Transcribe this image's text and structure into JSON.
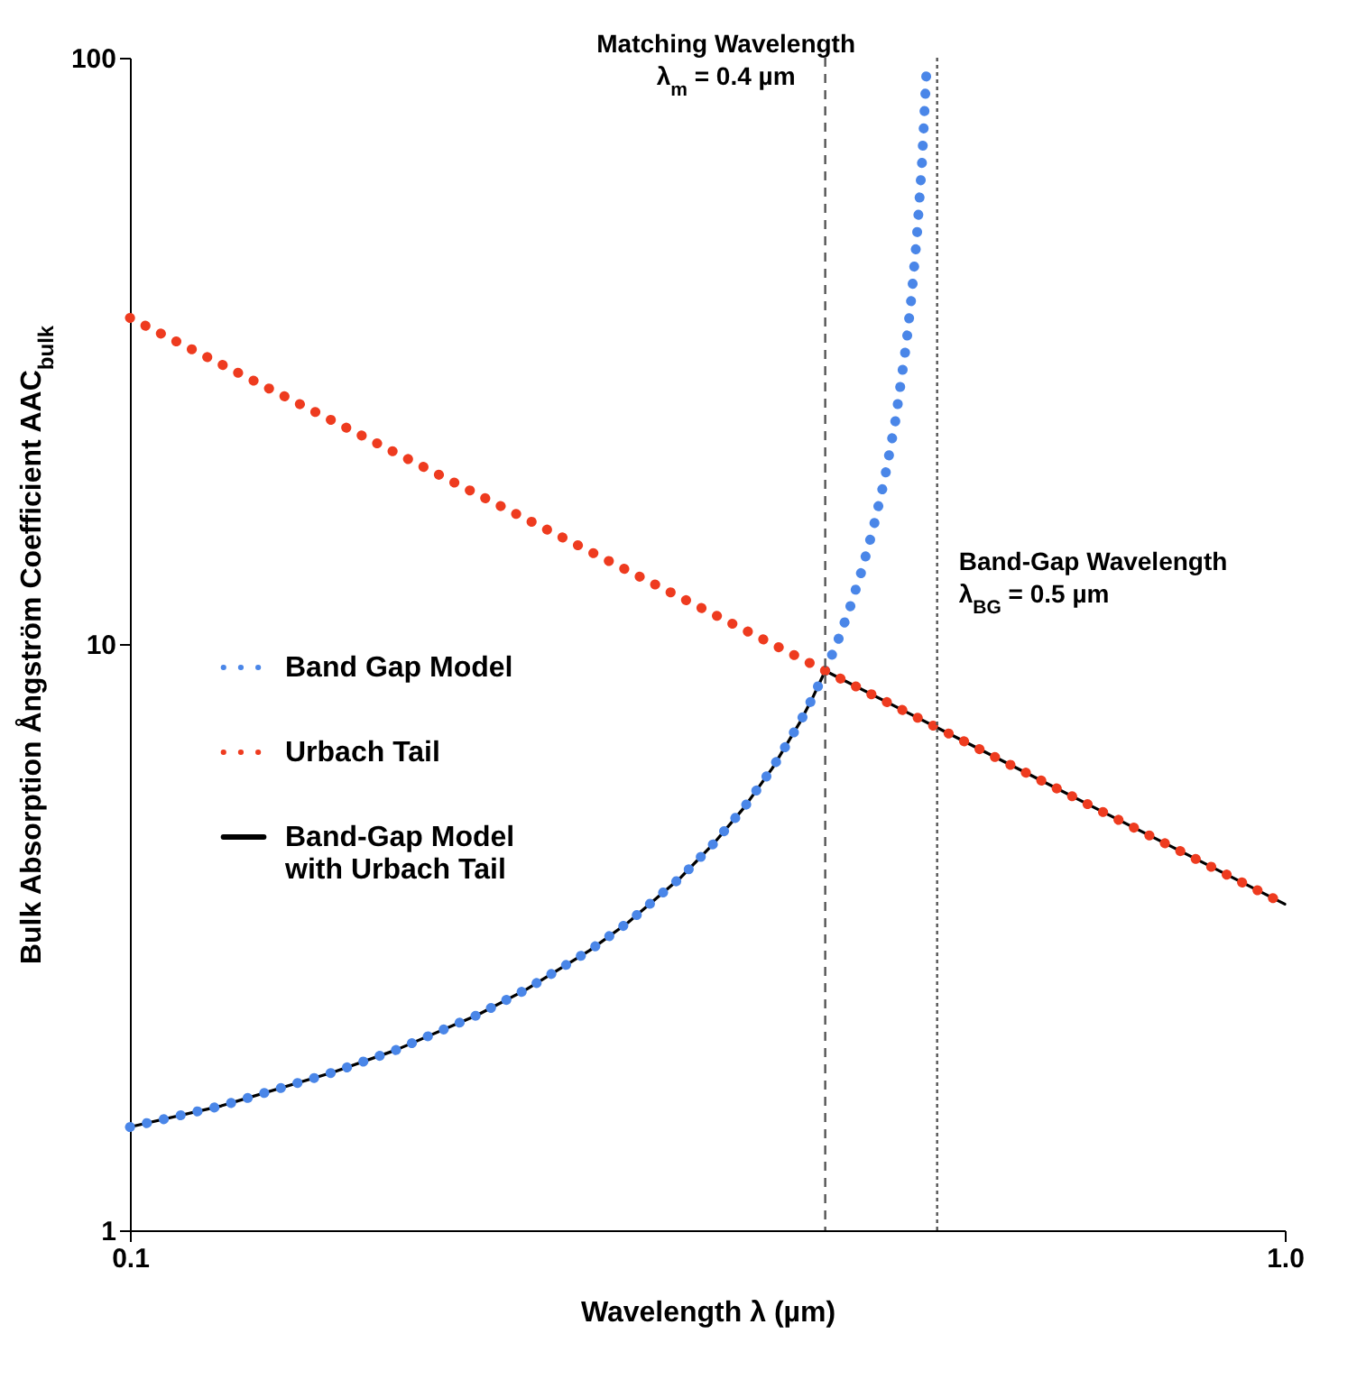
{
  "chart_data": {
    "type": "line",
    "xlabel": "Wavelength λ (µm)",
    "ylabel": "Bulk Absorption Ångström Coefficient AAC$_{bulk}$",
    "log": "xy",
    "xlim": [
      0.1,
      1
    ],
    "ylim": [
      1,
      100
    ],
    "xticks": [
      0.1,
      {
        "value": 1,
        "label": "1.0"
      }
    ],
    "yticks": [
      1,
      10,
      100
    ],
    "grid": false,
    "legend": "left",
    "series": [
      {
        "name": "Band Gap Model",
        "color": "#4a86e8",
        "line_style": "dotted",
        "x": [
          0.1,
          0.12,
          0.15,
          0.17,
          0.2,
          0.22,
          0.25,
          0.27,
          0.3,
          0.32,
          0.34,
          0.36,
          0.38,
          0.39,
          0.4,
          0.41,
          0.42,
          0.43,
          0.44,
          0.45,
          0.46,
          0.47,
          0.475,
          0.48,
          0.485,
          0.49
        ],
        "values": [
          1.5,
          1.63,
          1.86,
          2.03,
          2.33,
          2.57,
          3,
          3.35,
          4,
          4.56,
          5.25,
          6.14,
          7.33,
          8.09,
          9,
          10.1,
          11.5,
          13.3,
          15.7,
          19,
          24,
          32.3,
          39,
          49,
          65.7,
          99
        ]
      },
      {
        "name": "Urbach Tail",
        "color": "#ee3b1f",
        "line_style": "dotted",
        "x": [
          0.1,
          0.2,
          0.3,
          0.4,
          0.5,
          0.6,
          0.7,
          0.8,
          0.9,
          1
        ],
        "values": [
          36,
          18,
          12,
          9,
          7.2,
          6,
          5.14,
          4.5,
          4,
          3.6
        ]
      },
      {
        "name": "Band-Gap Model\nwith Urbach Tail",
        "color": "#000000",
        "line_style": "solid",
        "x": [
          0.1,
          0.12,
          0.15,
          0.17,
          0.2,
          0.22,
          0.25,
          0.27,
          0.3,
          0.32,
          0.34,
          0.36,
          0.38,
          0.39,
          0.4,
          0.5,
          0.6,
          0.7,
          0.8,
          0.9,
          1
        ],
        "values": [
          1.5,
          1.63,
          1.86,
          2.03,
          2.33,
          2.57,
          3,
          3.35,
          4,
          4.56,
          5.25,
          6.14,
          7.33,
          8.09,
          9,
          7.2,
          6,
          5.14,
          4.5,
          4,
          3.6
        ]
      }
    ],
    "ref_lines": [
      {
        "axis": "x",
        "value": 0.4,
        "label": "Matching Wavelength\nλ$_{m}$ = 0.4 µm",
        "color": "#555555",
        "line_style": "dashed"
      },
      {
        "axis": "x",
        "value": 0.5,
        "label": "Band-Gap Wavelength\nλ$_{BG}$ = 0.5 µm",
        "color": "#555555",
        "line_style": "dotted"
      }
    ]
  }
}
